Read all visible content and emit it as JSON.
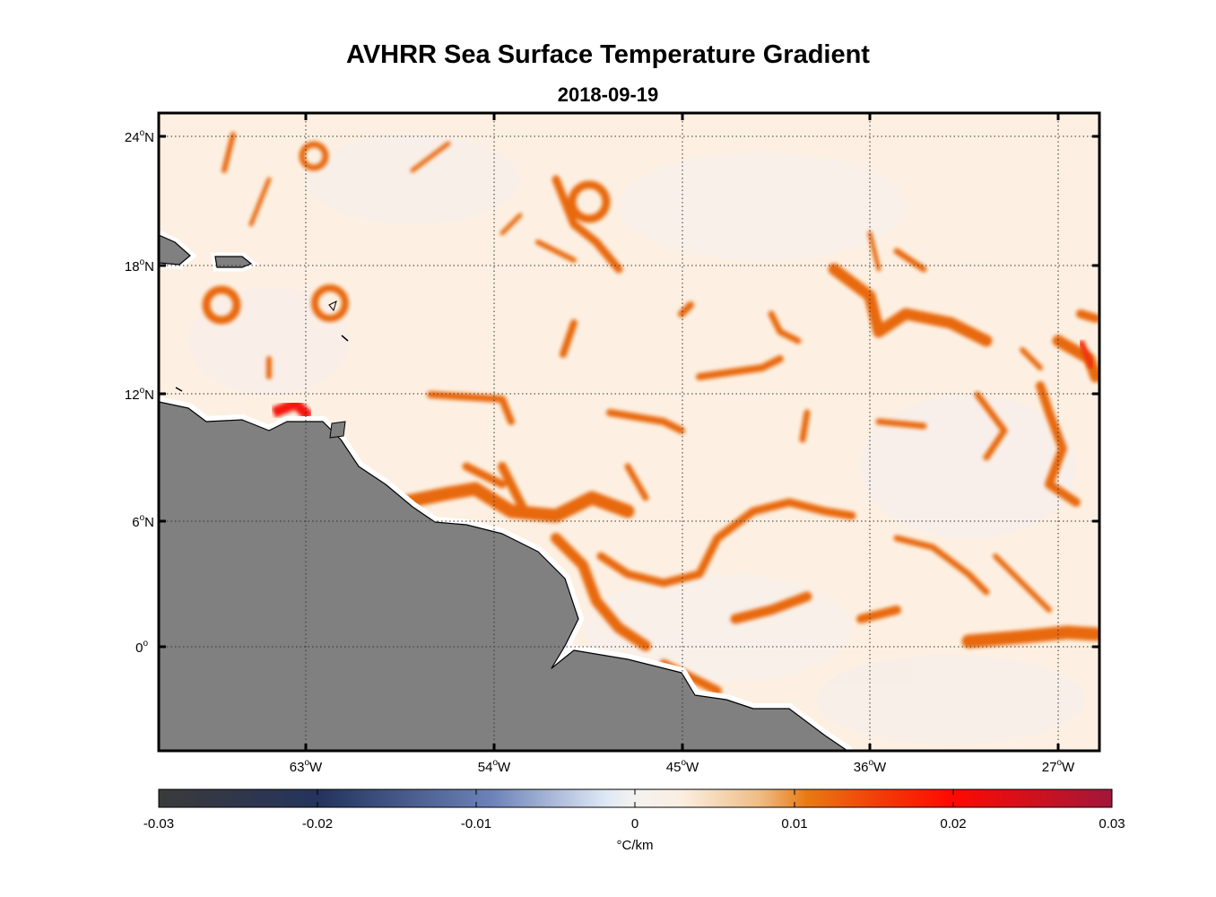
{
  "title": "AVHRR Sea Surface Temperature Gradient",
  "subtitle": "2018-09-19",
  "map": {
    "lon_labels": [
      {
        "value": -63,
        "text": "63",
        "hem": "W"
      },
      {
        "value": -54,
        "text": "54",
        "hem": "W"
      },
      {
        "value": -45,
        "text": "45",
        "hem": "W"
      },
      {
        "value": -36,
        "text": "36",
        "hem": "W"
      },
      {
        "value": -27,
        "text": "27",
        "hem": "W"
      }
    ],
    "lat_labels": [
      {
        "value": 24,
        "text": "24",
        "hem": "N"
      },
      {
        "value": 18,
        "text": "18",
        "hem": "N"
      },
      {
        "value": 12,
        "text": "12",
        "hem": "N"
      },
      {
        "value": 6,
        "text": "6",
        "hem": "N"
      },
      {
        "value": 0,
        "text": "0",
        "hem": ""
      }
    ],
    "land_color": "#808080",
    "ocean_background": "#fdf1e4",
    "front_color": "#e8650a",
    "strong_front_color": "#f02000"
  },
  "colorbar": {
    "ticks": [
      "-0.03",
      "-0.02",
      "-0.01",
      "0",
      "0.01",
      "0.02",
      "0.03"
    ],
    "unit": "°C/km",
    "colors": [
      "#3a3a3a",
      "#1e2d55",
      "#6a80b8",
      "#e8f0f8",
      "#fbebd8",
      "#e07b10",
      "#ff1000",
      "#a01020"
    ]
  }
}
